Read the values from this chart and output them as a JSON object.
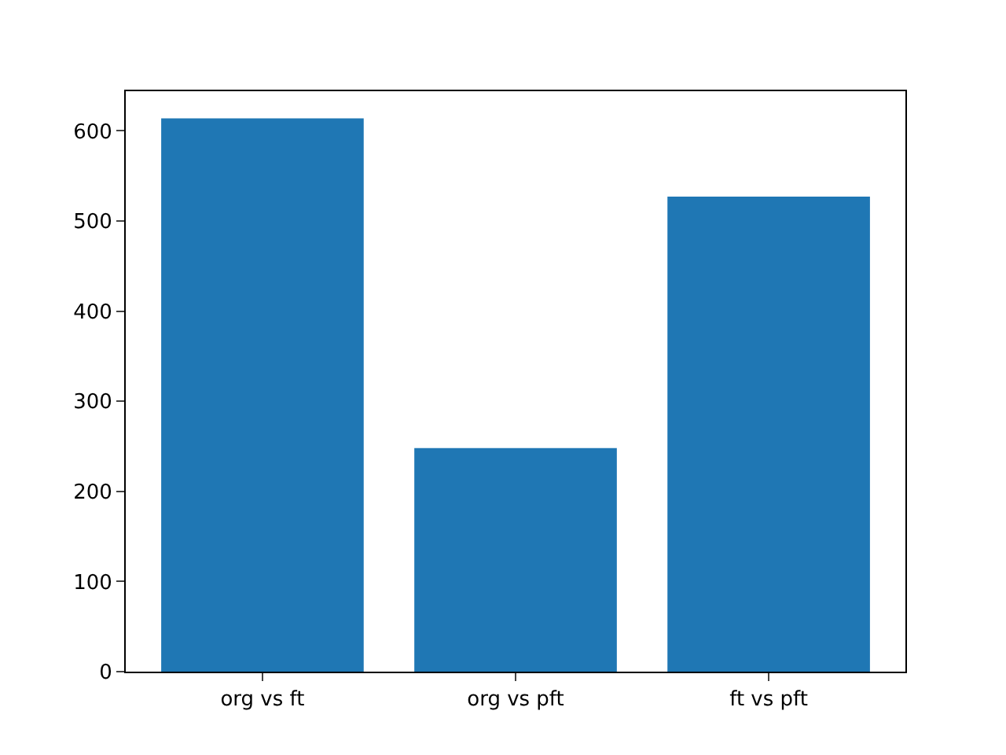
{
  "chart_data": {
    "type": "bar",
    "categories": [
      "org vs ft",
      "org vs pft",
      "ft vs pft"
    ],
    "values": [
      614,
      248,
      527
    ],
    "color": "#1f77b4",
    "ylim": [
      0,
      644
    ],
    "yticks": [
      0,
      100,
      200,
      300,
      400,
      500,
      600
    ]
  }
}
